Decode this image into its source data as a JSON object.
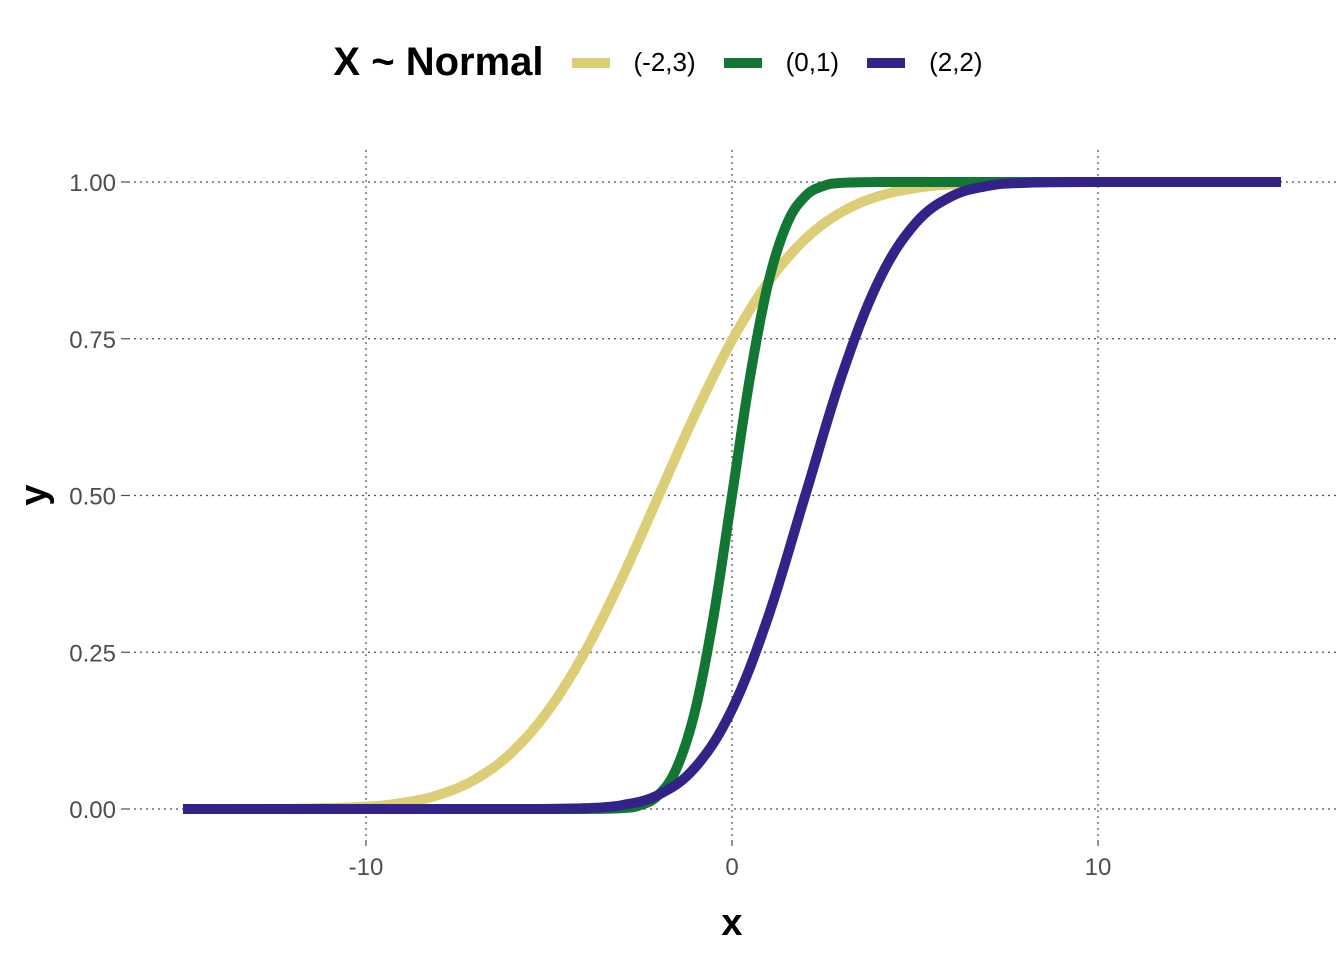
{
  "chart_data": {
    "type": "line",
    "title": "",
    "xlabel": "x",
    "ylabel": "y",
    "xlim": [
      -15,
      15
    ],
    "ylim": [
      0,
      1
    ],
    "x_ticks": [
      -10,
      0,
      10
    ],
    "x_tick_labels": [
      "-10",
      "0",
      "10"
    ],
    "y_ticks": [
      0,
      0.25,
      0.5,
      0.75,
      1.0
    ],
    "y_tick_labels": [
      "0.00",
      "0.25",
      "0.50",
      "0.75",
      "1.00"
    ],
    "grid": true,
    "legend": {
      "title": "X ~ Normal",
      "position": "top"
    },
    "series": [
      {
        "name": "(-2,3)",
        "color": "#dccd77",
        "x": [
          -15,
          -12,
          -10,
          -9,
          -8,
          -7,
          -6,
          -5,
          -4,
          -3,
          -2,
          -1,
          0,
          1,
          2,
          3,
          4,
          5,
          6,
          7,
          8,
          10,
          15
        ],
        "y": [
          0.0,
          0.0004,
          0.0038,
          0.0098,
          0.0228,
          0.0478,
          0.0912,
          0.1587,
          0.2525,
          0.3694,
          0.5,
          0.6306,
          0.7475,
          0.8413,
          0.9088,
          0.9522,
          0.9772,
          0.9902,
          0.9962,
          0.9987,
          0.9996,
          1.0,
          1.0
        ]
      },
      {
        "name": "(0,1)",
        "color": "#117733",
        "x": [
          -15,
          -5,
          -4,
          -3,
          -2.5,
          -2,
          -1.5,
          -1,
          -0.5,
          0,
          0.5,
          1,
          1.5,
          2,
          2.5,
          3,
          4,
          5,
          15
        ],
        "y": [
          0.0,
          0.0,
          0.0,
          0.0013,
          0.0062,
          0.0228,
          0.0668,
          0.1587,
          0.3085,
          0.5,
          0.6915,
          0.8413,
          0.9332,
          0.9772,
          0.9938,
          0.9987,
          1.0,
          1.0,
          1.0
        ]
      },
      {
        "name": "(2,2)",
        "color": "#332288",
        "x": [
          -15,
          -8,
          -6,
          -5,
          -4,
          -3,
          -2,
          -1,
          0,
          1,
          2,
          3,
          4,
          5,
          6,
          7,
          8,
          10,
          15
        ],
        "y": [
          0.0,
          0.0,
          0.0,
          0.0002,
          0.0013,
          0.0062,
          0.0228,
          0.0668,
          0.1587,
          0.3085,
          0.5,
          0.6915,
          0.8413,
          0.9332,
          0.9772,
          0.9938,
          0.9987,
          1.0,
          1.0
        ]
      }
    ]
  }
}
